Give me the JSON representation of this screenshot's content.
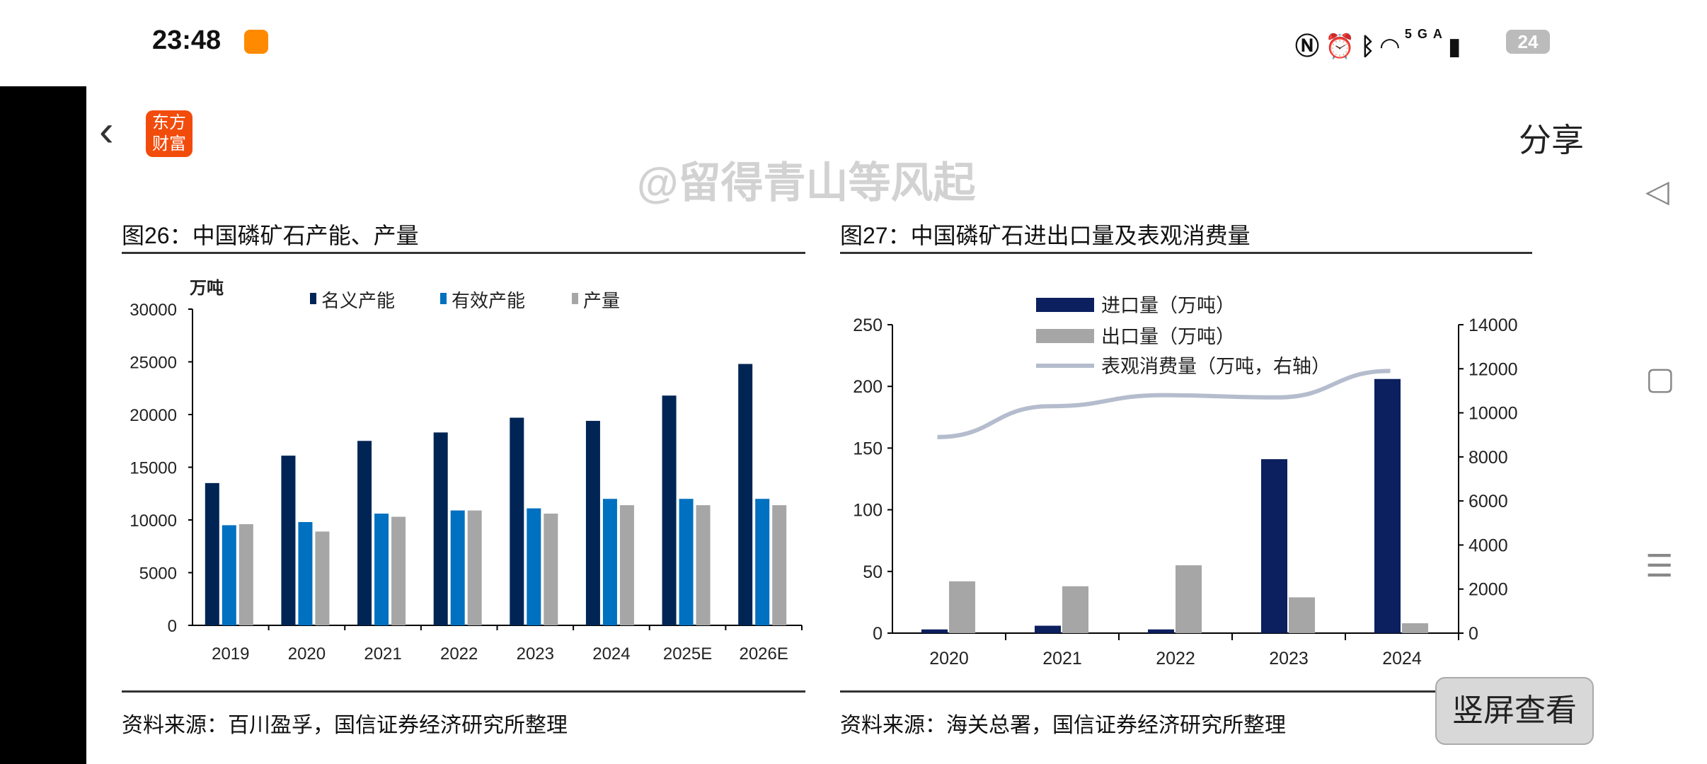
{
  "status_bar": {
    "time": "23:48",
    "icons": [
      "nfc-icon",
      "alarm-icon",
      "bluetooth-icon",
      "wifi-icon",
      "5g-signal-icon"
    ],
    "network": "5GA",
    "battery": "24"
  },
  "header": {
    "back_icon": "chevron-left-icon",
    "logo_text": "东方财富",
    "logo_line1": "东方",
    "logo_line2": "财富",
    "share": "分享",
    "brand_color": "#f24c0c"
  },
  "nav_buttons": [
    "back-triangle-icon",
    "home-square-icon",
    "menu-lines-icon"
  ],
  "figure_left": {
    "title": "图26：中国磷矿石产能、产量",
    "source": "资料来源：百川盈孚，国信证券经济研究所整理"
  },
  "figure_right": {
    "title": "图27：中国磷矿石进出口量及表观消费量",
    "source": "资料来源：海关总署，国信证券经济研究所整理"
  },
  "watermark": "@留得青山等风起",
  "portrait_button": "竖屏查看",
  "chart_data": [
    {
      "type": "bar",
      "unit_label": "万吨",
      "categories": [
        "2019",
        "2020",
        "2021",
        "2022",
        "2023",
        "2024",
        "2025E",
        "2026E"
      ],
      "series": [
        {
          "name": "名义产能",
          "color": "#002555",
          "values": [
            13500,
            16100,
            17500,
            18300,
            19700,
            19400,
            21800,
            24800
          ]
        },
        {
          "name": "有效产能",
          "color": "#0070c0",
          "values": [
            9500,
            9800,
            10600,
            10900,
            11100,
            12000,
            12000,
            12000
          ]
        },
        {
          "name": "产量",
          "color": "#a6a6a6",
          "values": [
            9600,
            8900,
            10300,
            10900,
            10600,
            11400,
            11400,
            11400
          ]
        }
      ],
      "ylim": [
        0,
        30000
      ],
      "yticks": [
        0,
        5000,
        10000,
        15000,
        20000,
        25000,
        30000
      ],
      "legend": "top",
      "grid": false
    },
    {
      "type": "bar+line",
      "categories": [
        "2020",
        "2021",
        "2022",
        "2023",
        "2024"
      ],
      "series": [
        {
          "name": "进口量（万吨）",
          "type": "bar",
          "axis": "left",
          "color": "#0c1f5e",
          "values": [
            3,
            6,
            3,
            141,
            206
          ]
        },
        {
          "name": "出口量（万吨）",
          "type": "bar",
          "axis": "left",
          "color": "#a6a6a6",
          "values": [
            42,
            38,
            55,
            29,
            8
          ]
        },
        {
          "name": "表观消费量（万吨，右轴）",
          "type": "line",
          "axis": "right",
          "color": "#b4bccd",
          "values": [
            8900,
            10300,
            10800,
            10700,
            11900
          ]
        }
      ],
      "ylim_left": [
        0,
        250
      ],
      "yticks_left": [
        0,
        50,
        100,
        150,
        200,
        250
      ],
      "ylim_right": [
        0,
        14000
      ],
      "yticks_right": [
        0,
        2000,
        4000,
        6000,
        8000,
        10000,
        12000,
        14000
      ],
      "legend": "top",
      "grid": false
    }
  ]
}
